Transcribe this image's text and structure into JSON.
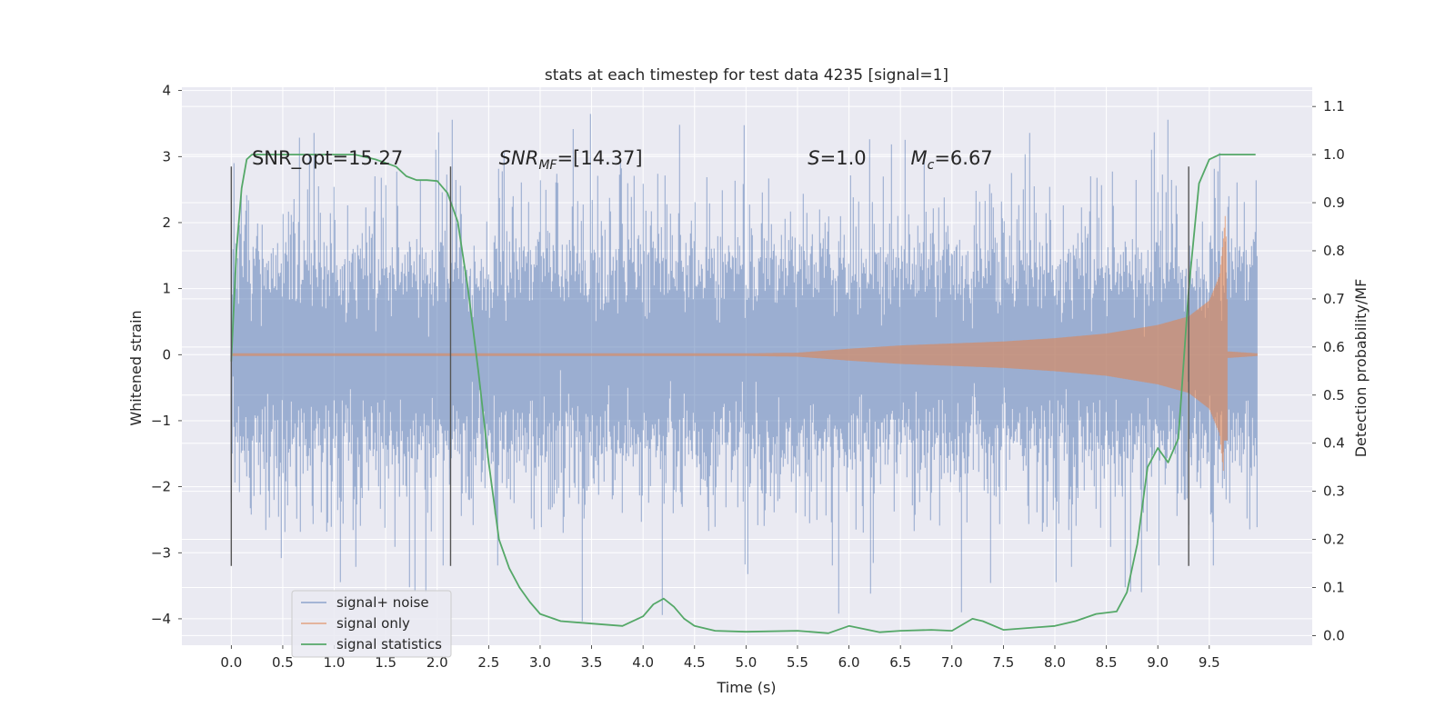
{
  "chart_data": {
    "type": "line",
    "title": "stats at each timestep for test data 4235 [signal=1]",
    "xlabel": "Time (s)",
    "ylabel": "Whitened strain",
    "y2label": "Detection probability/MF",
    "xlim": [
      -0.48,
      10.5
    ],
    "ylim": [
      -4.4,
      4.05
    ],
    "y2lim": [
      -0.02,
      1.14
    ],
    "x_ticks": [
      "0.0",
      "0.5",
      "1.0",
      "1.5",
      "2.0",
      "2.5",
      "3.0",
      "3.5",
      "4.0",
      "4.5",
      "5.0",
      "5.5",
      "6.0",
      "6.5",
      "7.0",
      "7.5",
      "8.0",
      "8.5",
      "9.0",
      "9.5"
    ],
    "y_ticks": [
      "−4",
      "−3",
      "−2",
      "−1",
      "0",
      "1",
      "2",
      "3",
      "4"
    ],
    "y2_ticks": [
      "0.0",
      "0.1",
      "0.2",
      "0.3",
      "0.4",
      "0.5",
      "0.6",
      "0.7",
      "0.8",
      "0.9",
      "1.0",
      "1.1"
    ],
    "grid": true,
    "legend_position": "lower-left",
    "vlines_x": [
      0.0,
      2.13,
      9.3
    ],
    "vline_ylim": [
      -3.2,
      2.85
    ],
    "annotations": [
      {
        "text": "SNR_opt=15.27",
        "x": 0.2,
        "y": 2.88,
        "italic": false
      },
      {
        "text": "SNR",
        "sub": "MF",
        "suffix": "=[14.37]",
        "x": 2.6,
        "y": 2.88,
        "italic": true
      },
      {
        "text": "S",
        "suffix": "=1.0",
        "x": 5.6,
        "y": 2.88,
        "italic": true
      },
      {
        "text": "M",
        "sub": "c",
        "suffix": "=6.67",
        "x": 6.6,
        "y": 2.88,
        "italic": true
      }
    ],
    "series": [
      {
        "name": "signal+ noise",
        "color": "#4c72b0",
        "opacity": 0.5,
        "axis": "left",
        "kind": "noise",
        "x_range": [
          0.0,
          9.97
        ],
        "typical_band": [
          -1.3,
          1.3
        ],
        "extremes_min": -4.05,
        "extremes_max": 3.65
      },
      {
        "name": "signal only",
        "color": "#dd8452",
        "opacity": 0.6,
        "axis": "left",
        "kind": "chirp",
        "x_range": [
          0.0,
          9.97
        ],
        "envelope": [
          [
            0.0,
            0.02
          ],
          [
            5.0,
            0.02
          ],
          [
            5.5,
            0.03
          ],
          [
            6.0,
            0.09
          ],
          [
            6.5,
            0.14
          ],
          [
            7.0,
            0.17
          ],
          [
            7.5,
            0.2
          ],
          [
            8.0,
            0.25
          ],
          [
            8.5,
            0.32
          ],
          [
            9.0,
            0.45
          ],
          [
            9.3,
            0.58
          ],
          [
            9.5,
            0.82
          ],
          [
            9.6,
            1.2
          ],
          [
            9.64,
            1.8
          ],
          [
            9.66,
            2.2
          ],
          [
            9.68,
            0.05
          ],
          [
            9.97,
            0.02
          ]
        ]
      },
      {
        "name": "signal statistics",
        "color": "#55a868",
        "opacity": 1,
        "axis": "right",
        "kind": "line",
        "x": [
          0.0,
          0.05,
          0.1,
          0.15,
          0.2,
          0.3,
          0.5,
          0.8,
          1.0,
          1.2,
          1.4,
          1.6,
          1.7,
          1.8,
          1.9,
          2.0,
          2.1,
          2.2,
          2.3,
          2.4,
          2.5,
          2.6,
          2.7,
          2.8,
          2.9,
          3.0,
          3.2,
          3.5,
          3.8,
          4.0,
          4.1,
          4.2,
          4.3,
          4.4,
          4.5,
          4.7,
          5.0,
          5.5,
          5.8,
          6.0,
          6.3,
          6.5,
          6.8,
          7.0,
          7.2,
          7.3,
          7.5,
          8.0,
          8.2,
          8.4,
          8.6,
          8.7,
          8.8,
          8.9,
          9.0,
          9.1,
          9.2,
          9.3,
          9.4,
          9.5,
          9.6,
          9.7,
          9.8,
          9.95
        ],
        "y": [
          0.57,
          0.8,
          0.93,
          0.99,
          1.0,
          1.0,
          1.0,
          1.0,
          1.0,
          1.0,
          0.99,
          0.975,
          0.955,
          0.947,
          0.947,
          0.945,
          0.92,
          0.86,
          0.72,
          0.55,
          0.36,
          0.2,
          0.14,
          0.1,
          0.07,
          0.045,
          0.03,
          0.025,
          0.02,
          0.04,
          0.065,
          0.077,
          0.06,
          0.035,
          0.02,
          0.01,
          0.008,
          0.01,
          0.005,
          0.02,
          0.007,
          0.01,
          0.012,
          0.01,
          0.035,
          0.03,
          0.012,
          0.02,
          0.03,
          0.045,
          0.05,
          0.09,
          0.19,
          0.35,
          0.39,
          0.36,
          0.41,
          0.72,
          0.94,
          0.99,
          1.0,
          1.0,
          1.0,
          1.0
        ]
      }
    ]
  }
}
